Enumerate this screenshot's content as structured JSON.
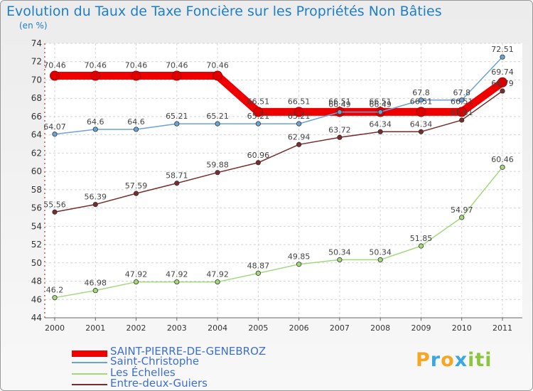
{
  "title": "Evolution du Taux de Taxe Foncière sur les Propriétés Non Bâties",
  "subtitle": "(en %)",
  "logo": {
    "text": "Proxiti",
    "letters": [
      "P",
      "r",
      "o",
      "x",
      "i",
      "t",
      "i"
    ],
    "colors": [
      "#f5a623",
      "#3ba7e0",
      "#f5a623",
      "#3ba7e0",
      "#8cc63f",
      "#8cc63f",
      "#8cc63f"
    ]
  },
  "chart_data": {
    "type": "line",
    "title": "Evolution du Taux de Taxe Foncière sur les Propriétés Non Bâties",
    "ylabel": "(en %)",
    "xlabel": "",
    "ylim": [
      44,
      74
    ],
    "yticks": [
      44,
      46,
      48,
      50,
      52,
      54,
      56,
      58,
      60,
      62,
      64,
      66,
      68,
      70,
      72,
      74
    ],
    "x": [
      "2000",
      "2001",
      "2002",
      "2003",
      "2004",
      "2005",
      "2006",
      "2007",
      "2008",
      "2009",
      "2010",
      "2011"
    ],
    "grid": true,
    "legend_position": "bottom-left",
    "series": [
      {
        "name": "SAINT-PIERRE-DE-GENEBROZ",
        "color": "#ee0000",
        "width": 11,
        "values": [
          70.46,
          70.46,
          70.46,
          70.46,
          70.46,
          66.51,
          66.51,
          66.51,
          66.51,
          66.51,
          66.51,
          69.74
        ],
        "labels": [
          "70.46",
          "70.46",
          "70.46",
          "70.46",
          "70.46",
          "66.51",
          "66.51",
          "66.51",
          "66.51",
          "66.51",
          "66.51",
          "69.74"
        ]
      },
      {
        "name": "Saint-Christophe",
        "color": "#6aa3d5",
        "width": 1.5,
        "values": [
          64.07,
          64.6,
          64.6,
          65.21,
          65.21,
          65.21,
          65.21,
          66.49,
          66.49,
          67.8,
          67.8,
          72.51
        ],
        "labels": [
          "64.07",
          "64.6",
          "64.6",
          "65.21",
          "65.21",
          "65.21",
          "65.21",
          "66.49",
          "66.49",
          "67.8",
          "67.8",
          "72.51"
        ]
      },
      {
        "name": "Les Échelles",
        "color": "#a3d97a",
        "width": 1.5,
        "values": [
          46.2,
          46.98,
          47.92,
          47.92,
          47.92,
          48.87,
          49.85,
          50.34,
          50.34,
          51.85,
          54.97,
          60.46
        ],
        "labels": [
          "46.2",
          "46.98",
          "47.92",
          "47.92",
          "47.92",
          "48.87",
          "49.85",
          "50.34",
          "50.34",
          "51.85",
          "54.97",
          "60.46"
        ]
      },
      {
        "name": "Entre-deux-Guiers",
        "color": "#7a2b2b",
        "width": 1.5,
        "values": [
          55.56,
          56.39,
          57.59,
          58.71,
          59.88,
          60.96,
          62.94,
          63.72,
          64.34,
          64.34,
          65.61,
          68.79
        ],
        "labels": [
          "55.56",
          "56.39",
          "57.59",
          "58.71",
          "59.88",
          "60.96",
          "62.94",
          "63.72",
          "64.34",
          "64.34",
          "65.61",
          "68.79"
        ]
      }
    ]
  }
}
